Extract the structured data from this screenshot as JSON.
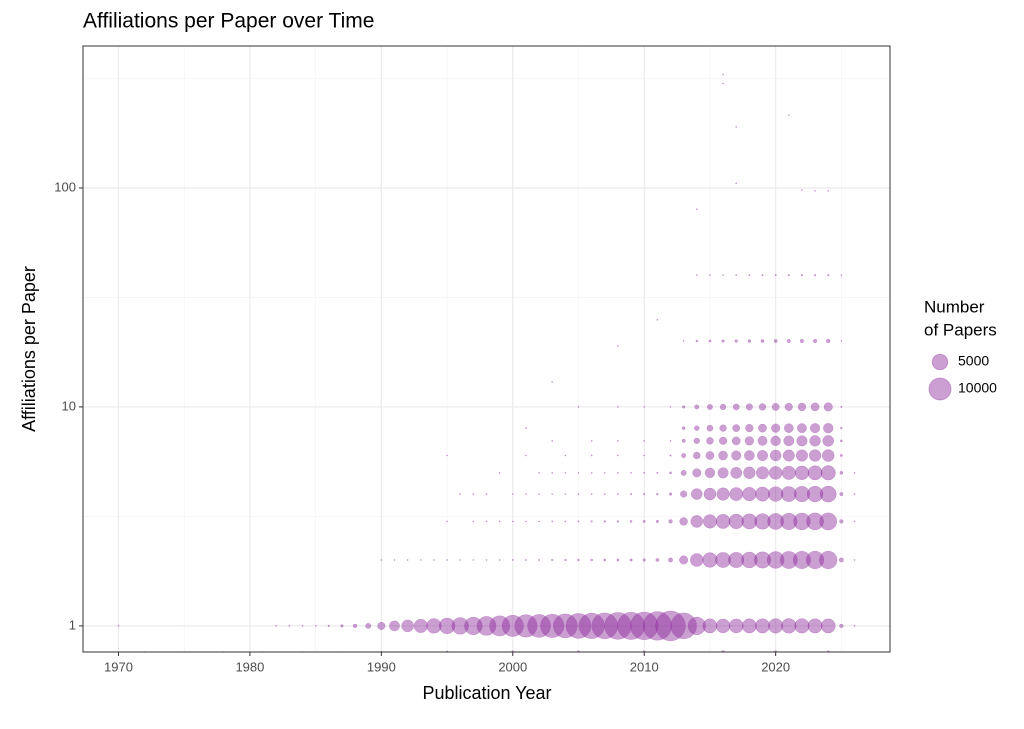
{
  "chart_data": {
    "type": "bubble",
    "title": "Affiliations per Paper over Time",
    "x_label": "Publication Year",
    "y_label": "Affiliations per Paper",
    "xlim": [
      1967.3,
      2028.7
    ],
    "xticks": [
      1970,
      1980,
      1990,
      2000,
      2010,
      2020
    ],
    "x_minor_ticks": [
      1975,
      1985,
      1995,
      2005,
      2015,
      2025
    ],
    "ylim": [
      0.76,
      445
    ],
    "log_y": true,
    "yticks": [
      1,
      10,
      100
    ],
    "y_minor_ticks": [
      3.162,
      31.62,
      316.2
    ],
    "grid": true,
    "color": "#8b2a9b",
    "size_legend": {
      "title": [
        "Number",
        "of Papers"
      ],
      "values": [
        5000,
        10000
      ]
    },
    "series": [
      {
        "x": [
          1972,
          1975,
          1978,
          1981,
          1984,
          1987,
          1990,
          1995,
          2000,
          2005,
          2010,
          2016,
          2020,
          2024
        ],
        "values": [
          0.76,
          0.76,
          0.76,
          0.76,
          0.76,
          0.76,
          0.76,
          0.76,
          0.76,
          0.76,
          0.76,
          0.76,
          0.76,
          0.76
        ],
        "sizes": [
          5,
          5,
          8,
          10,
          15,
          30,
          60,
          100,
          150,
          150,
          150,
          200,
          150,
          150
        ]
      },
      {
        "x": [
          1970,
          1982,
          1983,
          1984,
          1985,
          1986,
          1987,
          1988,
          1989,
          1990,
          1991,
          1992,
          1993,
          1994,
          1995,
          1996,
          1997,
          1998,
          1999,
          2000,
          2001,
          2002,
          2003,
          2004,
          2005,
          2006,
          2007,
          2008,
          2009,
          2010,
          2011,
          2012,
          2013,
          2014,
          2015,
          2016,
          2017,
          2018,
          2019,
          2020,
          2021,
          2022,
          2023,
          2024,
          2025,
          2026
        ],
        "values": [
          1,
          1,
          1,
          1,
          1,
          1,
          1,
          1,
          1,
          1,
          1,
          1,
          1,
          1,
          1,
          1,
          1,
          1,
          1,
          1,
          1,
          1,
          1,
          1,
          1,
          1,
          1,
          1,
          1,
          1,
          1,
          1,
          1,
          1,
          1,
          1,
          1,
          1,
          1,
          1,
          1,
          1,
          1,
          1,
          1,
          1
        ],
        "sizes": [
          5,
          5,
          10,
          15,
          30,
          60,
          150,
          300,
          600,
          1200,
          2200,
          3000,
          3800,
          4500,
          5200,
          5800,
          6500,
          7500,
          8500,
          9500,
          10500,
          11000,
          11500,
          12000,
          13000,
          13500,
          14000,
          15000,
          15500,
          16000,
          17000,
          18500,
          14000,
          6500,
          4200,
          4000,
          4100,
          4200,
          4300,
          4400,
          4500,
          4400,
          4300,
          4200,
          300,
          10
        ]
      },
      {
        "x": [
          1990,
          1991,
          1992,
          1993,
          1994,
          1995,
          1996,
          1997,
          1998,
          1999,
          2000,
          2001,
          2002,
          2003,
          2004,
          2005,
          2006,
          2007,
          2008,
          2009,
          2010,
          2011,
          2012,
          2013,
          2014,
          2015,
          2016,
          2017,
          2018,
          2019,
          2020,
          2021,
          2022,
          2023,
          2024,
          2025,
          2026
        ],
        "values": [
          2,
          2,
          2,
          2,
          2,
          2,
          2,
          2,
          2,
          2,
          2,
          2,
          2,
          2,
          2,
          2,
          2,
          2,
          2,
          2,
          2,
          2,
          2,
          2,
          2,
          2,
          2,
          2,
          2,
          2,
          2,
          2,
          2,
          2,
          2,
          2,
          2
        ],
        "sizes": [
          20,
          10,
          8,
          10,
          12,
          15,
          20,
          25,
          30,
          35,
          40,
          45,
          50,
          60,
          70,
          80,
          90,
          100,
          110,
          130,
          150,
          200,
          400,
          1500,
          3500,
          4500,
          4800,
          5000,
          5300,
          5600,
          5900,
          6200,
          6300,
          6400,
          6500,
          400,
          20
        ]
      },
      {
        "x": [
          1995,
          1997,
          1998,
          1999,
          2000,
          2001,
          2002,
          2003,
          2004,
          2005,
          2006,
          2007,
          2008,
          2009,
          2010,
          2011,
          2012,
          2013,
          2014,
          2015,
          2016,
          2017,
          2018,
          2019,
          2020,
          2021,
          2022,
          2023,
          2024,
          2025,
          2026
        ],
        "values": [
          3,
          3,
          3,
          3,
          3,
          3,
          3,
          3,
          3,
          3,
          3,
          3,
          3,
          3,
          3,
          3,
          3,
          3,
          3,
          3,
          3,
          3,
          3,
          3,
          3,
          3,
          3,
          3,
          3,
          3,
          3
        ],
        "sizes": [
          8,
          10,
          12,
          15,
          20,
          25,
          30,
          35,
          40,
          50,
          60,
          70,
          80,
          100,
          120,
          150,
          300,
          1300,
          3000,
          3800,
          4200,
          4500,
          4800,
          5100,
          5400,
          5700,
          5900,
          6000,
          6100,
          300,
          10
        ]
      },
      {
        "x": [
          1996,
          1997,
          1998,
          2000,
          2001,
          2002,
          2003,
          2004,
          2005,
          2006,
          2007,
          2008,
          2009,
          2010,
          2011,
          2012,
          2013,
          2014,
          2015,
          2016,
          2017,
          2018,
          2019,
          2020,
          2021,
          2022,
          2023,
          2024,
          2025,
          2026
        ],
        "values": [
          4,
          4,
          4,
          4,
          4,
          4,
          4,
          4,
          4,
          4,
          4,
          4,
          4,
          4,
          4,
          4,
          4,
          4,
          4,
          4,
          4,
          4,
          4,
          4,
          4,
          4,
          4,
          4,
          4,
          4
        ],
        "sizes": [
          5,
          5,
          5,
          10,
          12,
          15,
          18,
          20,
          25,
          30,
          35,
          40,
          50,
          60,
          80,
          150,
          900,
          2500,
          3000,
          3300,
          3600,
          3900,
          4200,
          4500,
          4800,
          5000,
          5200,
          5400,
          250,
          10
        ]
      },
      {
        "x": [
          1999,
          2002,
          2003,
          2004,
          2005,
          2006,
          2007,
          2008,
          2009,
          2010,
          2011,
          2012,
          2013,
          2014,
          2015,
          2016,
          2017,
          2018,
          2019,
          2020,
          2021,
          2022,
          2023,
          2024,
          2025,
          2026
        ],
        "values": [
          5,
          5,
          5,
          5,
          5,
          5,
          5,
          5,
          5,
          5,
          5,
          5,
          5,
          5,
          5,
          5,
          5,
          5,
          5,
          5,
          5,
          5,
          5,
          5,
          5,
          5
        ],
        "sizes": [
          5,
          8,
          10,
          12,
          15,
          18,
          20,
          25,
          30,
          40,
          50,
          100,
          600,
          1500,
          2000,
          2300,
          2600,
          2900,
          3200,
          3500,
          3800,
          4000,
          4200,
          4400,
          200,
          8
        ]
      },
      {
        "x": [
          2001,
          2004,
          2006,
          2008,
          2010,
          2012,
          2013,
          2014,
          2015,
          2016,
          2017,
          2018,
          2019,
          2020,
          2021,
          2022,
          2023,
          2024,
          2025
        ],
        "values": [
          6,
          6,
          6,
          6,
          6,
          6,
          6,
          6,
          6,
          6,
          6,
          6,
          6,
          6,
          6,
          6,
          6,
          6,
          6
        ],
        "sizes": [
          5,
          5,
          8,
          10,
          15,
          50,
          400,
          1000,
          1400,
          1700,
          1900,
          2100,
          2300,
          2500,
          2700,
          2800,
          2900,
          3000,
          120
        ]
      },
      {
        "x": [
          2003,
          2006,
          2008,
          2010,
          2012,
          2013,
          2014,
          2015,
          2016,
          2017,
          2018,
          2019,
          2020,
          2021,
          2022,
          2023,
          2024,
          2025
        ],
        "values": [
          7,
          7,
          7,
          7,
          7,
          7,
          7,
          7,
          7,
          7,
          7,
          7,
          7,
          7,
          7,
          7,
          7,
          7
        ],
        "sizes": [
          5,
          5,
          8,
          10,
          30,
          250,
          700,
          1000,
          1200,
          1400,
          1600,
          1800,
          2000,
          2200,
          2300,
          2400,
          2500,
          100
        ]
      },
      {
        "x": [
          2013,
          2014,
          2015,
          2016,
          2017,
          2018,
          2019,
          2020,
          2021,
          2022,
          2023,
          2024,
          2025
        ],
        "values": [
          8,
          8,
          8,
          8,
          8,
          8,
          8,
          8,
          8,
          8,
          8,
          8,
          8
        ],
        "sizes": [
          200,
          500,
          800,
          950,
          1100,
          1250,
          1400,
          1550,
          1700,
          1800,
          1900,
          2000,
          80
        ]
      },
      {
        "x": [
          2005,
          2008,
          2010,
          2012,
          2013,
          2014,
          2015,
          2016,
          2017,
          2018,
          2019,
          2020,
          2021,
          2022,
          2023,
          2024,
          2025
        ],
        "values": [
          10,
          10,
          10,
          10,
          10,
          10,
          10,
          10,
          10,
          10,
          10,
          10,
          10,
          10,
          10,
          10,
          10
        ],
        "sizes": [
          5,
          5,
          8,
          15,
          150,
          400,
          600,
          700,
          800,
          900,
          1000,
          1100,
          1200,
          1300,
          1400,
          1500,
          50
        ]
      },
      {
        "x": [
          2013,
          2014,
          2015,
          2016,
          2017,
          2018,
          2019,
          2020,
          2021,
          2022,
          2023,
          2024,
          2025
        ],
        "values": [
          20,
          20,
          20,
          20,
          20,
          20,
          20,
          20,
          20,
          20,
          20,
          20,
          20
        ],
        "sizes": [
          30,
          80,
          120,
          150,
          170,
          190,
          210,
          230,
          250,
          270,
          280,
          300,
          10
        ]
      },
      {
        "x": [
          2014,
          2015,
          2016,
          2017,
          2018,
          2019,
          2020,
          2021,
          2022,
          2023,
          2024,
          2025
        ],
        "values": [
          40,
          40,
          40,
          40,
          40,
          40,
          40,
          40,
          40,
          40,
          40,
          40
        ],
        "sizes": [
          10,
          20,
          30,
          35,
          40,
          45,
          50,
          55,
          60,
          60,
          60,
          5
        ]
      },
      {
        "x": [
          2016,
          2016,
          2017,
          2021,
          2017,
          2022,
          2023,
          2024,
          2014,
          2008,
          2011,
          1995,
          2003,
          2001
        ],
        "values": [
          330,
          300,
          190,
          215,
          105,
          98,
          97,
          97,
          80,
          19,
          25,
          6,
          13,
          8
        ],
        "sizes": [
          1,
          1,
          1,
          1,
          1,
          1,
          1,
          1,
          1,
          1,
          1,
          1,
          1,
          1
        ]
      }
    ]
  }
}
